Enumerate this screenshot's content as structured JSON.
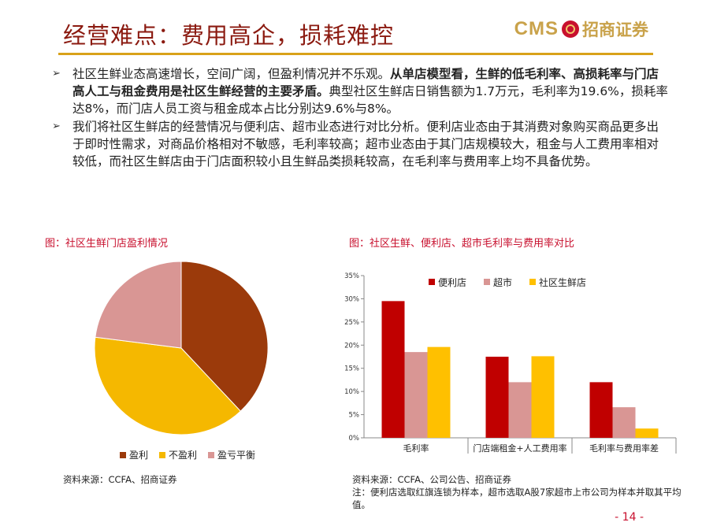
{
  "header": {
    "title": "经营难点：费用高企，损耗难控",
    "logo_en": "CMS",
    "logo_cn": "招商证券",
    "rule_color": "#d9a21a",
    "title_color": "#8b1a10"
  },
  "bullets": [
    {
      "icon": "arrow-bullet-icon",
      "glyph": "➢",
      "pre": "社区生鲜业态高速增长，空间广阔，但盈利情况并不乐观。",
      "bold": "从单店模型看，生鲜的低毛利率、高损耗率与门店高人工与租金费用是社区生鲜经营的主要矛盾。",
      "post": "典型社区生鲜店日销售额为1.7万元，毛利率为19.6%，损耗率达8%，而门店人员工资与租金成本占比分别达9.6%与8%。"
    },
    {
      "icon": "arrow-bullet-icon",
      "glyph": "➢",
      "pre": "我们将社区生鲜店的经营情况与便利店、超市业态进行对比分析。便利店业态由于其消费对象购买商品更多出于即时性需求，对商品价格相对不敏感，毛利率较高；超市业态由于其门店规模较大，租金与人工费用率相对较低，而社区生鲜店由于门店面积较小且生鲜品类损耗较高，在毛利率与费用率上均不具备优势。",
      "bold": "",
      "post": ""
    }
  ],
  "left_panel": {
    "caption": "图：社区生鲜门店盈利情况",
    "source": "资料来源：CCFA、招商证券"
  },
  "right_panel": {
    "caption": "图：社区生鲜、便利店、超市毛利率与费用率对比",
    "source": "资料来源：CCFA、公司公告、招商证券",
    "note": "注：便利店选取红旗连锁为样本，超市选取A股7家超市上市公司为样本并取其平均值。"
  },
  "chart_data": [
    {
      "type": "pie",
      "title": "",
      "slices": [
        {
          "name": "盈利",
          "value": 38,
          "color": "#9b3a0b"
        },
        {
          "name": "不盈利",
          "value": 39,
          "color": "#f5b800"
        },
        {
          "name": "盈亏平衡",
          "value": 23,
          "color": "#d99694"
        }
      ],
      "legend_position": "bottom"
    },
    {
      "type": "bar",
      "title": "",
      "categories": [
        "毛利率",
        "门店端租金+人工费用率",
        "毛利率与费用率差"
      ],
      "series": [
        {
          "name": "便利店",
          "values": [
            29.5,
            17.5,
            12.0
          ],
          "color": "#c00000"
        },
        {
          "name": "超市",
          "values": [
            18.5,
            12.0,
            6.6
          ],
          "color": "#d99694"
        },
        {
          "name": "社区生鲜店",
          "values": [
            19.6,
            17.6,
            2.0
          ],
          "color": "#ffc000"
        }
      ],
      "ylim": [
        0,
        35
      ],
      "yticks": [
        "0%",
        "5%",
        "10%",
        "15%",
        "20%",
        "25%",
        "30%",
        "35%"
      ],
      "grid": false,
      "legend_position": "top"
    }
  ],
  "page_number": "- 14 -"
}
